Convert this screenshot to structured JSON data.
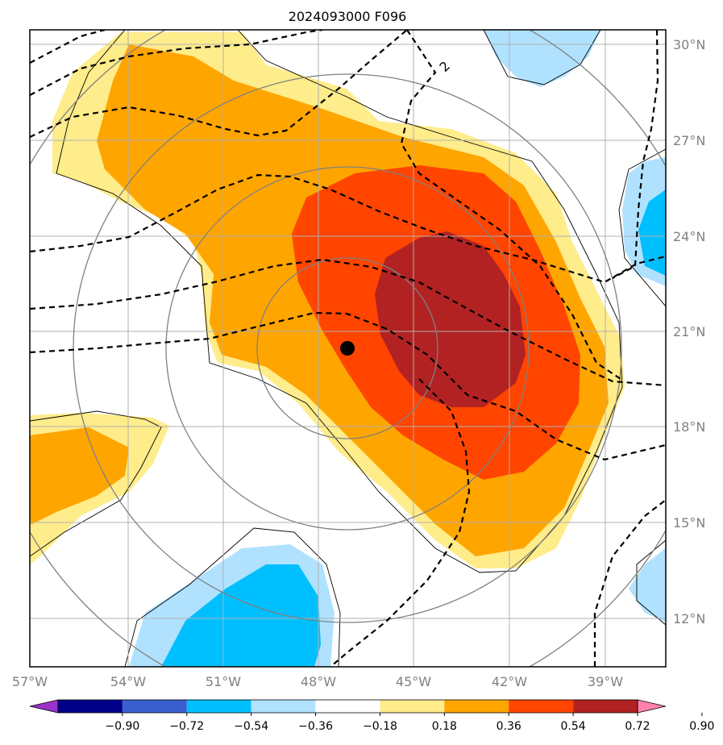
{
  "title": "2024093000 F096",
  "map": {
    "lon_range": [
      -57,
      -38.5
    ],
    "lat_range": [
      10,
      30.5
    ],
    "lon_ticks": [
      {
        "value": -57,
        "label": "57°W"
      },
      {
        "value": -54,
        "label": "54°W"
      },
      {
        "value": -51,
        "label": "51°W"
      },
      {
        "value": -48,
        "label": "48°W"
      },
      {
        "value": -45,
        "label": "45°W"
      },
      {
        "value": -42,
        "label": "42°W"
      },
      {
        "value": -39,
        "label": "39°W"
      }
    ],
    "lat_ticks": [
      {
        "value": 30,
        "label": "30°N"
      },
      {
        "value": 27,
        "label": "27°N"
      },
      {
        "value": 24,
        "label": "24°N"
      },
      {
        "value": 21,
        "label": "21°N"
      },
      {
        "value": 18,
        "label": "18°N"
      },
      {
        "value": 15,
        "label": "15°N"
      },
      {
        "value": 12,
        "label": "12°N"
      }
    ],
    "gridlines": true,
    "storm_center": {
      "lon": -47.5,
      "lat": 20.5
    },
    "contour_label": "2"
  },
  "colorbar": {
    "colors": [
      "#9a32cd",
      "#00008b",
      "#3a5fcd",
      "#00bfff",
      "#b0e2ff",
      "#ffffff",
      "#ffec8b",
      "#ffa500",
      "#ff4500",
      "#b22222",
      "#ff82ab"
    ],
    "ticks": [
      "−0.90",
      "−0.72",
      "−0.54",
      "−0.36",
      "−0.18",
      "0.18",
      "0.36",
      "0.54",
      "0.72",
      "0.90"
    ],
    "extend": "both"
  }
}
